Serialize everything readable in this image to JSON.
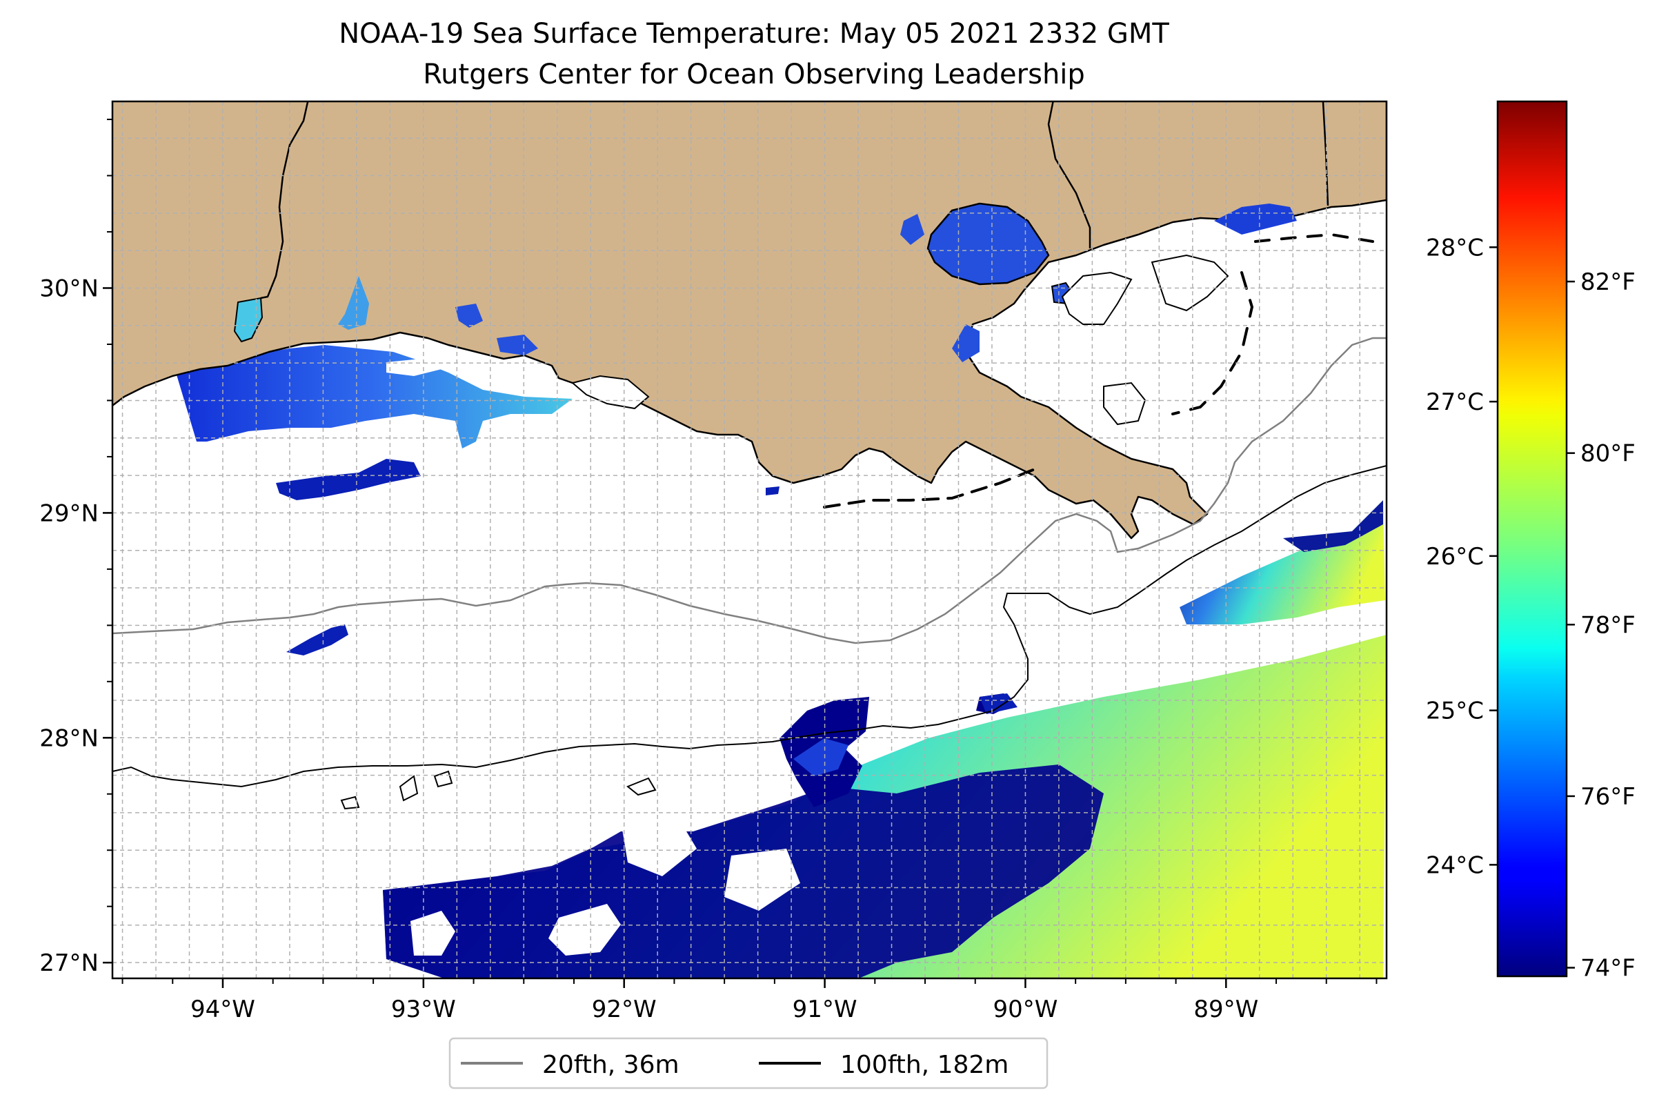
{
  "title": {
    "line1": "NOAA-19 Sea Surface Temperature: May 05 2021 2332 GMT",
    "line2": "Rutgers Center for Ocean Observing Leadership"
  },
  "map": {
    "extent": {
      "lon_min": -94.55,
      "lon_max": -88.2,
      "lat_min": 26.93,
      "lat_max": 30.83
    },
    "x_ticks": [
      {
        "lon": -94,
        "label": "94°W"
      },
      {
        "lon": -93,
        "label": "93°W"
      },
      {
        "lon": -92,
        "label": "92°W"
      },
      {
        "lon": -91,
        "label": "91°W"
      },
      {
        "lon": -90,
        "label": "90°W"
      },
      {
        "lon": -89,
        "label": "89°W"
      }
    ],
    "y_ticks": [
      {
        "lat": 27,
        "label": "27°N"
      },
      {
        "lat": 28,
        "label": "28°N"
      },
      {
        "lat": 29,
        "label": "29°N"
      },
      {
        "lat": 30,
        "label": "30°N"
      }
    ],
    "grid": true,
    "land_color": "#D2B48C",
    "legend": {
      "placement": "below map",
      "items": [
        {
          "label": "20fth, 36m",
          "color": "#808080"
        },
        {
          "label": "100fth, 182m",
          "color": "#000000"
        }
      ]
    }
  },
  "colorbar": {
    "colormap": "jet",
    "range_f": [
      73.9,
      84.1
    ],
    "fahrenheit_ticks": [
      {
        "value": 74,
        "label": "74°F"
      },
      {
        "value": 76,
        "label": "76°F"
      },
      {
        "value": 78,
        "label": "78°F"
      },
      {
        "value": 80,
        "label": "80°F"
      },
      {
        "value": 82,
        "label": "82°F"
      }
    ],
    "celsius_ticks": [
      {
        "value": 24,
        "label": "24°C"
      },
      {
        "value": 25,
        "label": "25°C"
      },
      {
        "value": 26,
        "label": "26°C"
      },
      {
        "value": 27,
        "label": "27°C"
      },
      {
        "value": 28,
        "label": "28°C"
      }
    ]
  }
}
